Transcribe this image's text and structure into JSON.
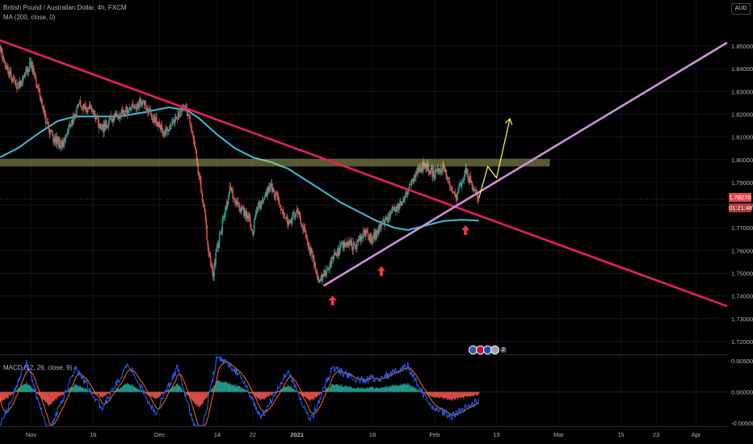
{
  "header": {
    "title": "British Pound / Australian Dollar, 4h, FXCM",
    "ma_legend": "MA (200, close, 0)",
    "macd_legend": "MACD (12, 26, close, 9)",
    "currency": "AUD"
  },
  "price_axis": {
    "ticks": [
      "1.85000",
      "1.84000",
      "1.83000",
      "1.82000",
      "1.81000",
      "1.80000",
      "1.79000",
      "1.78000",
      "1.77000",
      "1.76000",
      "1.75000",
      "1.74000",
      "1.73000",
      "1.72000"
    ],
    "current_price": "1.78270",
    "countdown": "01:21:48",
    "current_color": "#e0494f"
  },
  "macd_axis": {
    "ticks": [
      "0.00500",
      "0.00000",
      "-0.00500"
    ]
  },
  "time_axis": {
    "labels": [
      "Nov",
      "16",
      "Dec",
      "14",
      "22",
      "2021",
      "18",
      "Feb",
      "15",
      "Mar",
      "15",
      "23",
      "Apr"
    ]
  },
  "events": {
    "count": "2"
  },
  "colors": {
    "up": "#26a69a",
    "down": "#ef5350",
    "ma": "#39c0d6",
    "downtrend": "#e91e63",
    "uptrend": "#ce93d8",
    "zone": "#c5c56a",
    "projection": "#ffff55",
    "arrow": "#f23645",
    "macd": "#2962ff",
    "signal": "#ff6d00"
  },
  "chart_data": [
    {
      "type": "candlestick",
      "title": "British Pound / Australian Dollar, 4h, FXCM",
      "x_range": [
        "2020-10-26",
        "2021-04-08"
      ],
      "ylim": [
        1.715,
        1.858
      ],
      "price_path": [
        [
          "2020-10-26",
          1.849
        ],
        [
          "2020-10-28",
          1.838
        ],
        [
          "2020-10-30",
          1.832
        ],
        [
          "2020-11-02",
          1.842
        ],
        [
          "2020-11-04",
          1.828
        ],
        [
          "2020-11-06",
          1.812
        ],
        [
          "2020-11-09",
          1.806
        ],
        [
          "2020-11-11",
          1.816
        ],
        [
          "2020-11-13",
          1.824
        ],
        [
          "2020-11-16",
          1.822
        ],
        [
          "2020-11-18",
          1.813
        ],
        [
          "2020-11-20",
          1.818
        ],
        [
          "2020-11-23",
          1.821
        ],
        [
          "2020-11-25",
          1.823
        ],
        [
          "2020-11-27",
          1.826
        ],
        [
          "2020-11-30",
          1.818
        ],
        [
          "2020-12-02",
          1.812
        ],
        [
          "2020-12-04",
          1.816
        ],
        [
          "2020-12-07",
          1.824
        ],
        [
          "2020-12-09",
          1.805
        ],
        [
          "2020-12-10",
          1.792
        ],
        [
          "2020-12-11",
          1.779
        ],
        [
          "2020-12-12",
          1.76
        ],
        [
          "2020-12-13",
          1.748
        ],
        [
          "2020-12-14",
          1.762
        ],
        [
          "2020-12-15",
          1.77
        ],
        [
          "2020-12-17",
          1.788
        ],
        [
          "2020-12-18",
          1.781
        ],
        [
          "2020-12-21",
          1.775
        ],
        [
          "2020-12-22",
          1.768
        ],
        [
          "2020-12-23",
          1.779
        ],
        [
          "2020-12-25",
          1.784
        ],
        [
          "2020-12-26",
          1.789
        ],
        [
          "2020-12-28",
          1.781
        ],
        [
          "2020-12-30",
          1.772
        ],
        [
          "2021-01-01",
          1.778
        ],
        [
          "2021-01-03",
          1.766
        ],
        [
          "2021-01-05",
          1.754
        ],
        [
          "2021-01-06",
          1.746
        ],
        [
          "2021-01-08",
          1.752
        ],
        [
          "2021-01-10",
          1.759
        ],
        [
          "2021-01-12",
          1.764
        ],
        [
          "2021-01-14",
          1.761
        ],
        [
          "2021-01-16",
          1.768
        ],
        [
          "2021-01-18",
          1.765
        ],
        [
          "2021-01-20",
          1.771
        ],
        [
          "2021-01-22",
          1.776
        ],
        [
          "2021-01-24",
          1.78
        ],
        [
          "2021-01-26",
          1.786
        ],
        [
          "2021-01-28",
          1.795
        ],
        [
          "2021-01-30",
          1.798
        ],
        [
          "2021-02-01",
          1.793
        ],
        [
          "2021-02-03",
          1.797
        ],
        [
          "2021-02-05",
          1.787
        ],
        [
          "2021-02-06",
          1.784
        ],
        [
          "2021-02-08",
          1.795
        ],
        [
          "2021-02-09",
          1.791
        ],
        [
          "2021-02-10",
          1.786
        ],
        [
          "2021-02-11",
          1.7827
        ]
      ]
    },
    {
      "type": "line",
      "series": [
        {
          "name": "MA (200, close, 0)",
          "values_note": ""
        }
      ],
      "ma_path": [
        [
          "2020-10-26",
          1.801
        ],
        [
          "2020-10-30",
          1.805
        ],
        [
          "2020-11-04",
          1.812
        ],
        [
          "2020-11-08",
          1.817
        ],
        [
          "2020-11-12",
          1.819
        ],
        [
          "2020-11-16",
          1.819
        ],
        [
          "2020-11-22",
          1.819
        ],
        [
          "2020-11-28",
          1.821
        ],
        [
          "2020-12-03",
          1.823
        ],
        [
          "2020-12-07",
          1.822
        ],
        [
          "2020-12-10",
          1.818
        ],
        [
          "2020-12-14",
          1.811
        ],
        [
          "2020-12-18",
          1.805
        ],
        [
          "2020-12-22",
          1.801
        ],
        [
          "2020-12-26",
          1.799
        ],
        [
          "2020-12-30",
          1.796
        ],
        [
          "2021-01-03",
          1.791
        ],
        [
          "2021-01-07",
          1.786
        ],
        [
          "2021-01-11",
          1.781
        ],
        [
          "2021-01-15",
          1.777
        ],
        [
          "2021-01-19",
          1.773
        ],
        [
          "2021-01-23",
          1.77
        ],
        [
          "2021-01-26",
          1.769
        ],
        [
          "2021-01-30",
          1.771
        ],
        [
          "2021-02-03",
          1.773
        ],
        [
          "2021-02-07",
          1.7735
        ],
        [
          "2021-02-11",
          1.7732
        ]
      ]
    },
    {
      "type": "line",
      "drawings": {
        "downtrend_line": [
          [
            "2020-10-26",
            1.8525
          ],
          [
            "2021-04-08",
            1.7355
          ]
        ],
        "uptrend_line": [
          [
            "2021-01-07",
            1.7445
          ],
          [
            "2021-04-08",
            1.8515
          ]
        ],
        "resistance_zone": [
          1.7984,
          1.7993
        ],
        "resistance_zone_end": "2021-02-27",
        "projection_path": [
          [
            "2021-02-11",
            1.783
          ],
          [
            "2021-02-13",
            1.797
          ],
          [
            "2021-02-15",
            1.792
          ],
          [
            "2021-02-18",
            1.818
          ]
        ],
        "arrows": [
          [
            "2021-01-09",
            1.738
          ],
          [
            "2021-01-20",
            1.751
          ],
          [
            "2021-02-08",
            1.769
          ]
        ]
      }
    },
    {
      "type": "bar",
      "title": "MACD (12, 26, close, 9)",
      "ylim": [
        -0.0062,
        0.0062
      ],
      "histogram_path": [
        [
          "2020-10-26",
          -0.0018
        ],
        [
          "2020-11-01",
          0.0015
        ],
        [
          "2020-11-06",
          -0.0021
        ],
        [
          "2020-11-12",
          0.0012
        ],
        [
          "2020-11-18",
          -0.0008
        ],
        [
          "2020-11-24",
          0.0014
        ],
        [
          "2020-11-30",
          -0.0011
        ],
        [
          "2020-12-05",
          0.0012
        ],
        [
          "2020-12-10",
          -0.0026
        ],
        [
          "2020-12-14",
          0.0018
        ],
        [
          "2020-12-19",
          0.0009
        ],
        [
          "2020-12-24",
          -0.0013
        ],
        [
          "2020-12-30",
          0.0011
        ],
        [
          "2021-01-04",
          -0.0015
        ],
        [
          "2021-01-09",
          0.0012
        ],
        [
          "2021-01-15",
          0.0006
        ],
        [
          "2021-01-20",
          0.0007
        ],
        [
          "2021-01-26",
          0.0013
        ],
        [
          "2021-01-31",
          -0.0007
        ],
        [
          "2021-02-05",
          -0.0012
        ],
        [
          "2021-02-11",
          -0.0004
        ]
      ]
    }
  ]
}
